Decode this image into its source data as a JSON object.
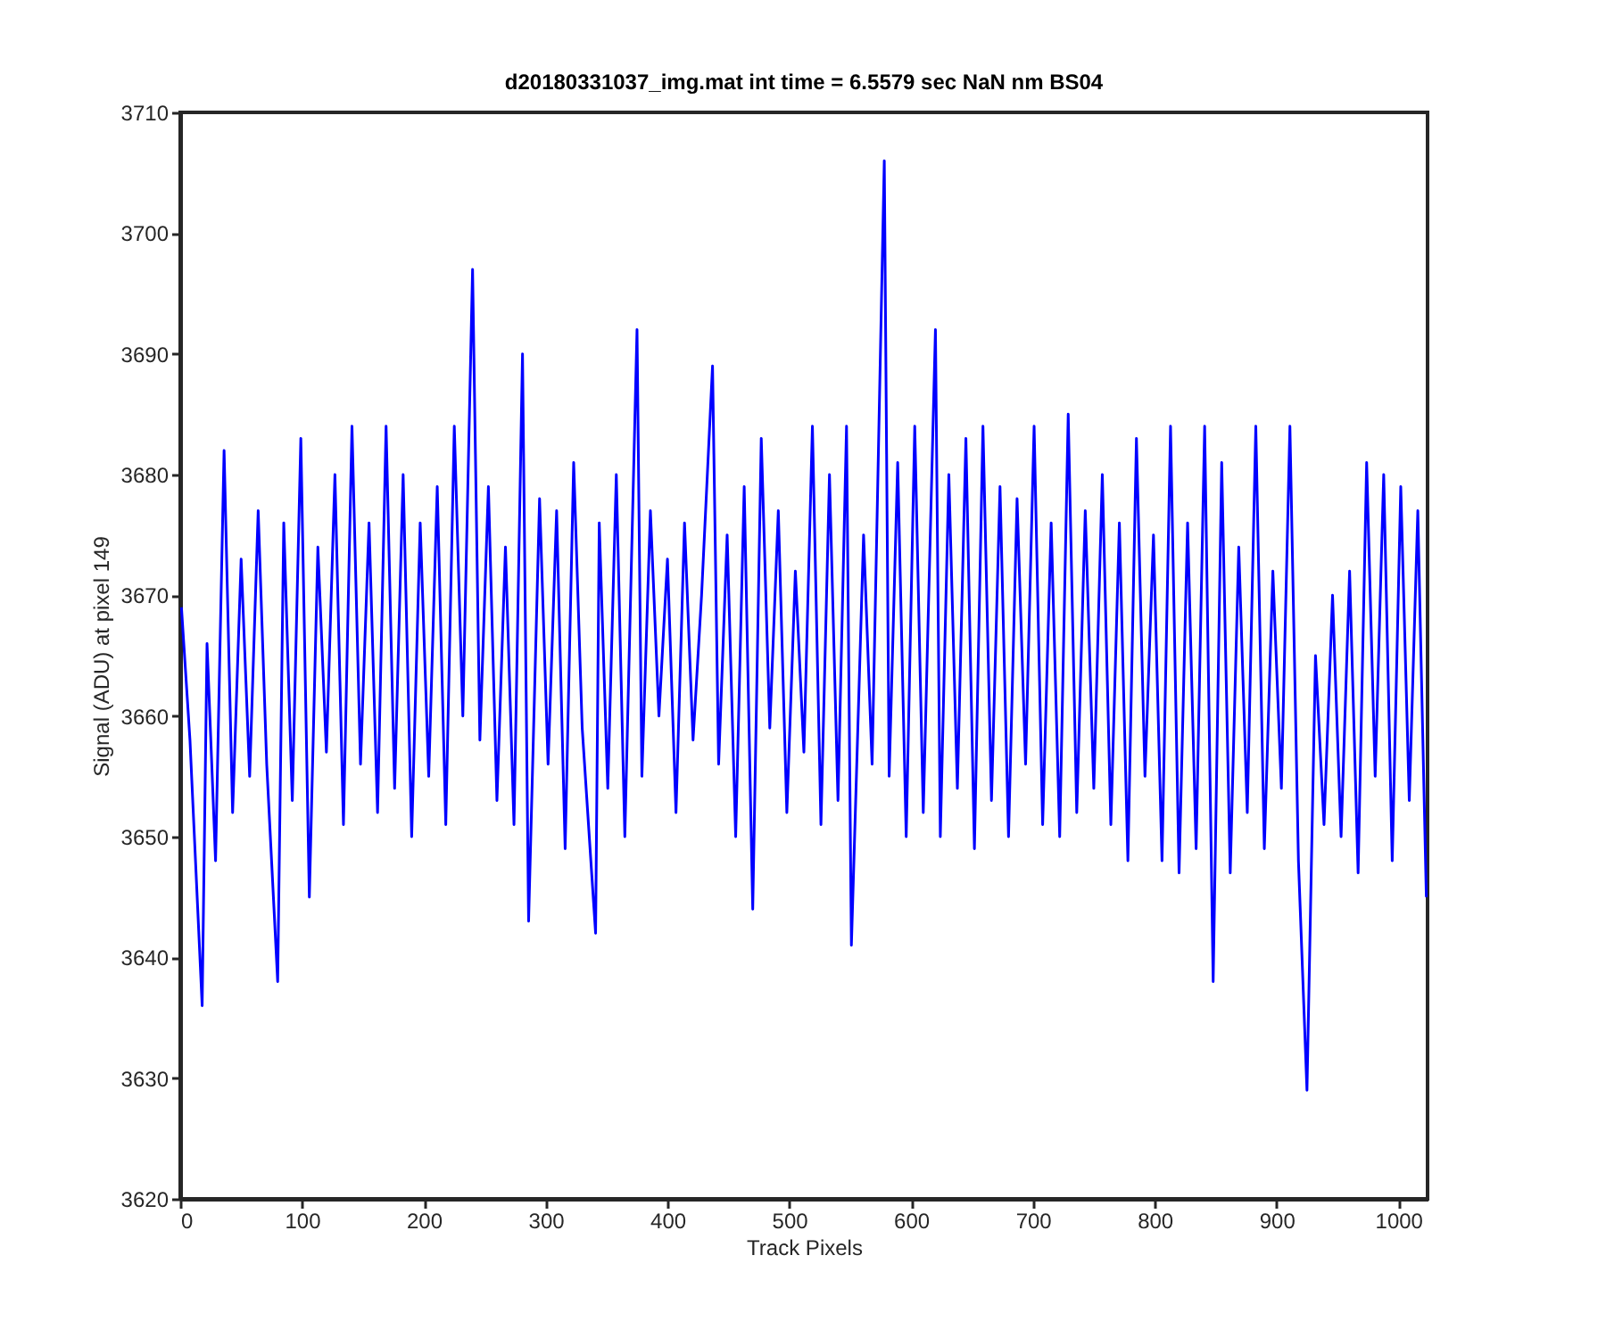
{
  "chart_data": {
    "type": "line",
    "title": "d20180331037_img.mat int time = 6.5579 sec  NaN nm BS04",
    "xlabel": "Track Pixels",
    "ylabel": "Signal (ADU) at pixel 149",
    "xlim": [
      0,
      1024
    ],
    "xticks": [
      0,
      100,
      200,
      300,
      400,
      500,
      600,
      700,
      800,
      900,
      1000
    ],
    "ylim": [
      3620,
      3710
    ],
    "yticks": [
      3620,
      3630,
      3640,
      3650,
      3660,
      3670,
      3680,
      3690,
      3700,
      3710
    ],
    "x": [
      1,
      8,
      18,
      22,
      29,
      36,
      43,
      50,
      57,
      64,
      71,
      80,
      85,
      92,
      99,
      106,
      113,
      120,
      127,
      134,
      141,
      148,
      155,
      162,
      169,
      176,
      183,
      190,
      197,
      204,
      211,
      218,
      225,
      232,
      240,
      246,
      253,
      260,
      267,
      274,
      281,
      286,
      295,
      302,
      309,
      316,
      323,
      330,
      341,
      344,
      351,
      358,
      365,
      375,
      379,
      386,
      393,
      400,
      407,
      414,
      421,
      428,
      437,
      442,
      449,
      456,
      463,
      470,
      477,
      484,
      491,
      498,
      505,
      512,
      519,
      526,
      533,
      540,
      547,
      551,
      561,
      568,
      578,
      582,
      589,
      596,
      603,
      610,
      620,
      624,
      631,
      638,
      645,
      652,
      659,
      666,
      673,
      680,
      687,
      694,
      701,
      708,
      715,
      722,
      729,
      736,
      743,
      750,
      757,
      764,
      771,
      778,
      785,
      792,
      799,
      806,
      813,
      820,
      827,
      834,
      841,
      848,
      855,
      862,
      869,
      876,
      883,
      890,
      897,
      904,
      911,
      918,
      925,
      932,
      939,
      946,
      953,
      960,
      967,
      974,
      981,
      988,
      995,
      1002,
      1009,
      1016,
      1023
    ],
    "series": [
      {
        "color": "#0000ff",
        "values": [
          3669,
          3658,
          3636,
          3666,
          3648,
          3682,
          3652,
          3673,
          3655,
          3677,
          3656,
          3638,
          3676,
          3653,
          3683,
          3645,
          3674,
          3657,
          3680,
          3651,
          3684,
          3656,
          3676,
          3652,
          3684,
          3654,
          3680,
          3650,
          3676,
          3655,
          3679,
          3651,
          3684,
          3660,
          3697,
          3658,
          3679,
          3653,
          3674,
          3651,
          3690,
          3643,
          3678,
          3656,
          3677,
          3649,
          3681,
          3659,
          3642,
          3676,
          3654,
          3680,
          3650,
          3692,
          3655,
          3677,
          3660,
          3673,
          3652,
          3676,
          3658,
          3670,
          3689,
          3656,
          3675,
          3650,
          3679,
          3644,
          3683,
          3659,
          3677,
          3652,
          3672,
          3657,
          3684,
          3651,
          3680,
          3653,
          3684,
          3641,
          3675,
          3656,
          3706,
          3655,
          3681,
          3650,
          3684,
          3652,
          3692,
          3650,
          3680,
          3654,
          3683,
          3649,
          3684,
          3653,
          3679,
          3650,
          3678,
          3656,
          3684,
          3651,
          3676,
          3650,
          3685,
          3652,
          3677,
          3654,
          3680,
          3651,
          3676,
          3648,
          3683,
          3655,
          3675,
          3648,
          3684,
          3647,
          3676,
          3649,
          3684,
          3638,
          3681,
          3647,
          3674,
          3652,
          3684,
          3649,
          3672,
          3654,
          3684,
          3648,
          3629,
          3665,
          3651,
          3670,
          3650,
          3672,
          3647,
          3681,
          3655,
          3680,
          3648,
          3679,
          3653,
          3677,
          3645
        ]
      }
    ]
  }
}
